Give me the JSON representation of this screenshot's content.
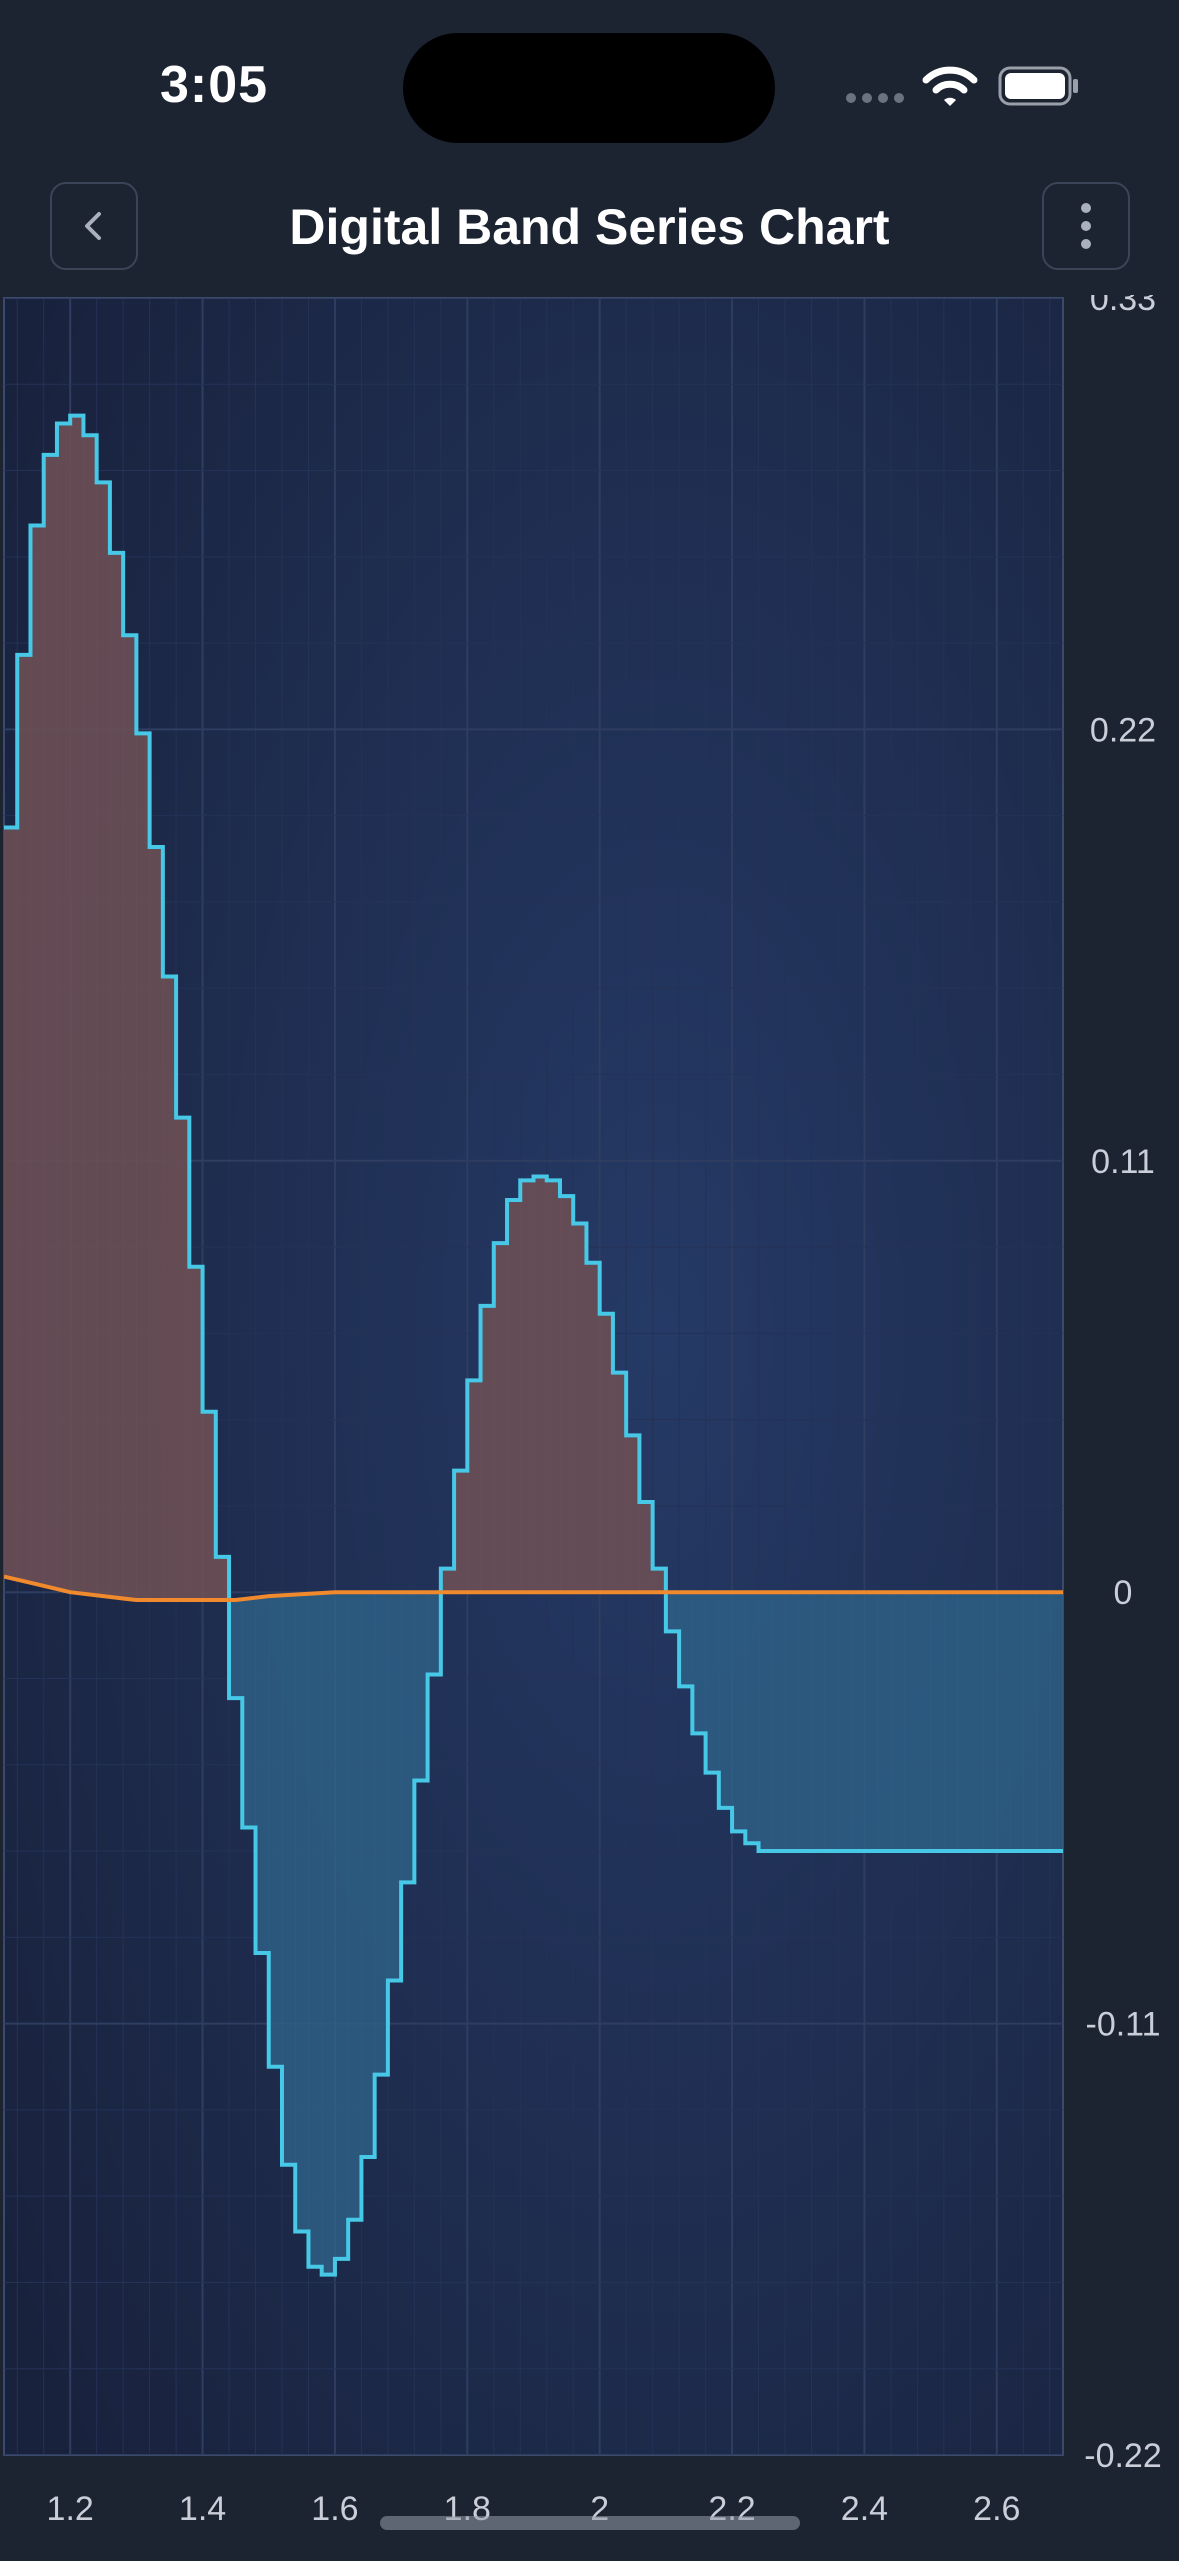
{
  "status_bar": {
    "time": "3:05"
  },
  "nav": {
    "title": "Digital Band Series Chart",
    "back_icon": "chevron-left-icon",
    "menu_icon": "more-vertical-icon"
  },
  "colors": {
    "background": "#1c2331",
    "plot_bg_top": "#1a2542",
    "plot_bg_mid": "#243761",
    "step_line": "#46c8e6",
    "band_line": "#f08a2c",
    "fill_above": "#6b4f55",
    "fill_below": "#2e5f85"
  },
  "chart_data": {
    "type": "area",
    "title": "Digital Band Series Chart",
    "xlabel": "",
    "ylabel": "",
    "xlim": [
      1.1,
      2.7
    ],
    "ylim": [
      -0.22,
      0.33
    ],
    "x_ticks": [
      "1.2",
      "1.4",
      "1.6",
      "1.8",
      "2",
      "2.2",
      "2.4",
      "2.6"
    ],
    "x_tick_values": [
      1.2,
      1.4,
      1.6,
      1.8,
      2.0,
      2.2,
      2.4,
      2.6
    ],
    "y_ticks": [
      "0.33",
      "0.22",
      "0.11",
      "0",
      "-0.11",
      "-0.22"
    ],
    "y_tick_values": [
      0.33,
      0.22,
      0.11,
      0,
      -0.11,
      -0.22
    ],
    "y_axis_position": "right",
    "grid": true,
    "band": {
      "step": "digital",
      "series_y": {
        "x": [
          1.1,
          1.12,
          1.14,
          1.16,
          1.18,
          1.2,
          1.22,
          1.24,
          1.26,
          1.28,
          1.3,
          1.32,
          1.34,
          1.36,
          1.38,
          1.4,
          1.42,
          1.44,
          1.46,
          1.48,
          1.5,
          1.52,
          1.54,
          1.56,
          1.58,
          1.6,
          1.62,
          1.64,
          1.66,
          1.68,
          1.7,
          1.72,
          1.74,
          1.76,
          1.78,
          1.8,
          1.82,
          1.84,
          1.86,
          1.88,
          1.9,
          1.92,
          1.94,
          1.96,
          1.98,
          2.0,
          2.02,
          2.04,
          2.06,
          2.08,
          2.1,
          2.12,
          2.14,
          2.16,
          2.18,
          2.2,
          2.22,
          2.24,
          2.26,
          2.28,
          2.3,
          2.32,
          2.34,
          2.36,
          2.38,
          2.4,
          2.42,
          2.44,
          2.46,
          2.48,
          2.5,
          2.52,
          2.54,
          2.56,
          2.58,
          2.6,
          2.62,
          2.64,
          2.66,
          2.68,
          2.7
        ],
        "y": [
          0.195,
          0.239,
          0.272,
          0.29,
          0.298,
          0.3,
          0.295,
          0.283,
          0.265,
          0.244,
          0.219,
          0.19,
          0.157,
          0.121,
          0.083,
          0.046,
          0.009,
          -0.027,
          -0.06,
          -0.092,
          -0.121,
          -0.146,
          -0.163,
          -0.172,
          -0.174,
          -0.17,
          -0.16,
          -0.144,
          -0.123,
          -0.099,
          -0.074,
          -0.048,
          -0.021,
          0.006,
          0.031,
          0.054,
          0.073,
          0.089,
          0.1,
          0.105,
          0.106,
          0.105,
          0.101,
          0.094,
          0.084,
          0.071,
          0.056,
          0.04,
          0.023,
          0.006,
          -0.01,
          -0.024,
          -0.036,
          -0.046,
          -0.055,
          -0.061,
          -0.064,
          -0.066,
          -0.066,
          -0.066,
          -0.066,
          -0.066,
          -0.066,
          -0.066,
          -0.066,
          -0.066,
          -0.066,
          -0.066,
          -0.066,
          -0.066,
          -0.066,
          -0.066,
          -0.066,
          -0.066,
          -0.066,
          -0.066,
          -0.066,
          -0.066,
          -0.066,
          -0.066,
          -0.066
        ]
      },
      "series_y1": {
        "x": [
          1.1,
          1.15,
          1.2,
          1.25,
          1.3,
          1.35,
          1.4,
          1.45,
          1.5,
          1.6,
          1.7,
          1.8,
          2.0,
          2.2,
          2.4,
          2.6,
          2.7
        ],
        "y": [
          0.004,
          0.002,
          0.0,
          -0.001,
          -0.002,
          -0.002,
          -0.002,
          -0.002,
          -0.001,
          0.0,
          0.0,
          0.0,
          0.0,
          0.0,
          0.0,
          0.0,
          0.0
        ]
      }
    }
  }
}
